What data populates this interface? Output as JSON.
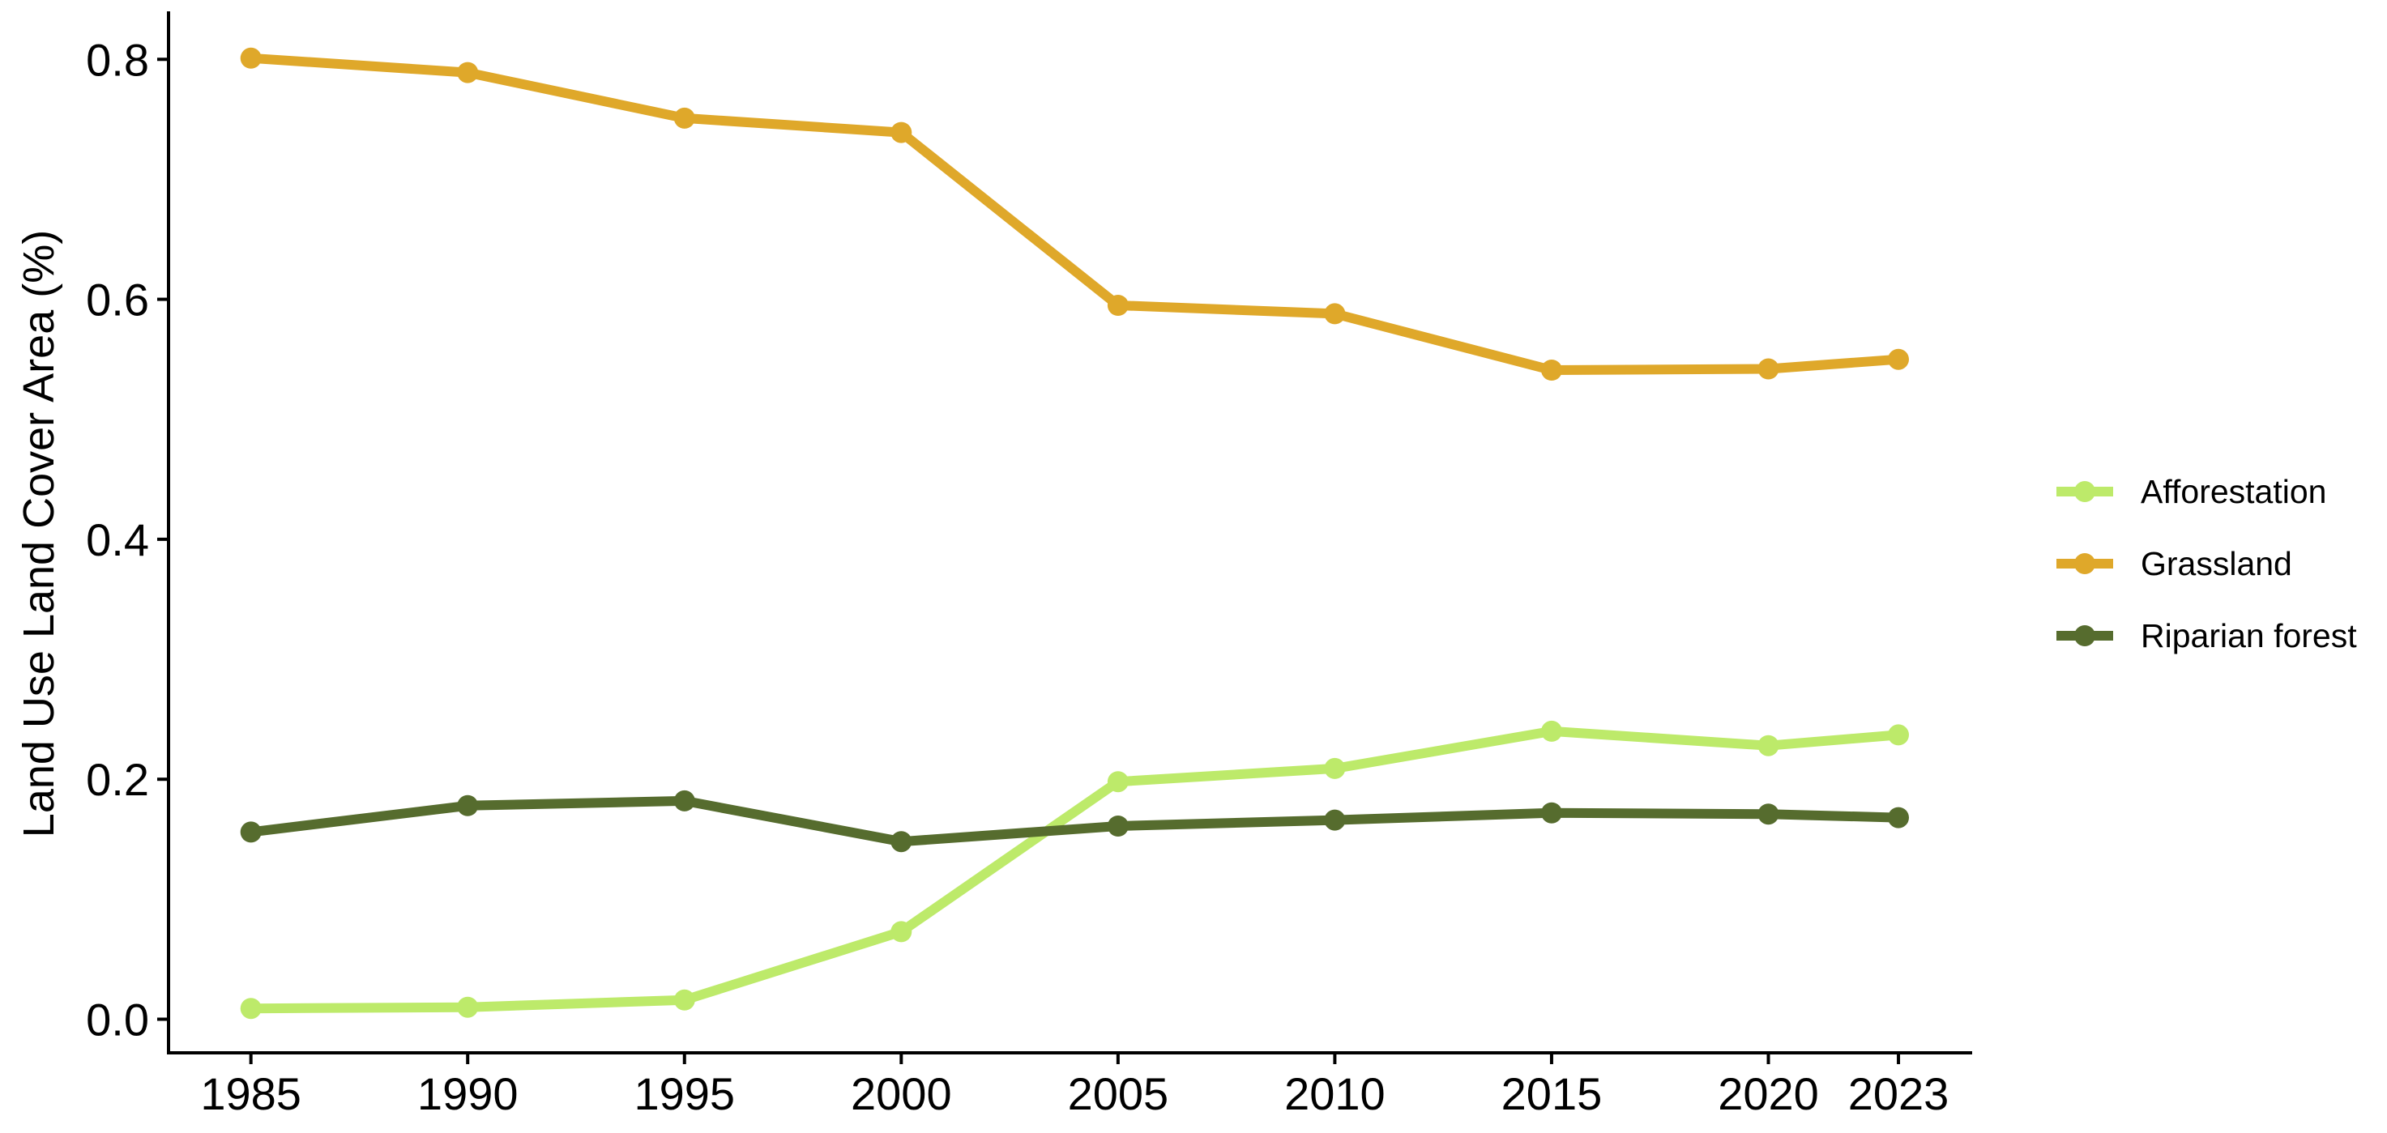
{
  "chart_data": {
    "type": "line",
    "title": "",
    "xlabel": "",
    "ylabel": "Land Use Land Cover Area (%)",
    "x": [
      1985,
      1990,
      1995,
      2000,
      2005,
      2010,
      2015,
      2020,
      2023
    ],
    "xticks": [
      "1985",
      "1990",
      "1995",
      "2000",
      "2005",
      "2010",
      "2015",
      "2020",
      "2023"
    ],
    "yticks": [
      "0.0",
      "0.2",
      "0.4",
      "0.6",
      "0.8"
    ],
    "xlim": [
      1983.1,
      2024.7
    ],
    "ylim": [
      -0.028,
      0.84
    ],
    "grid": false,
    "legend_position": "right",
    "series": [
      {
        "name": "Afforestation",
        "color": "#BDEA6A",
        "values": [
          0.009,
          0.01,
          0.016,
          0.073,
          0.198,
          0.209,
          0.24,
          0.228,
          0.237
        ]
      },
      {
        "name": "Grassland",
        "color": "#DFA82A",
        "values": [
          0.801,
          0.789,
          0.751,
          0.739,
          0.595,
          0.588,
          0.541,
          0.542,
          0.55
        ]
      },
      {
        "name": "Riparian forest",
        "color": "#566C2E",
        "values": [
          0.156,
          0.178,
          0.182,
          0.148,
          0.161,
          0.166,
          0.172,
          0.171,
          0.168
        ]
      }
    ]
  }
}
